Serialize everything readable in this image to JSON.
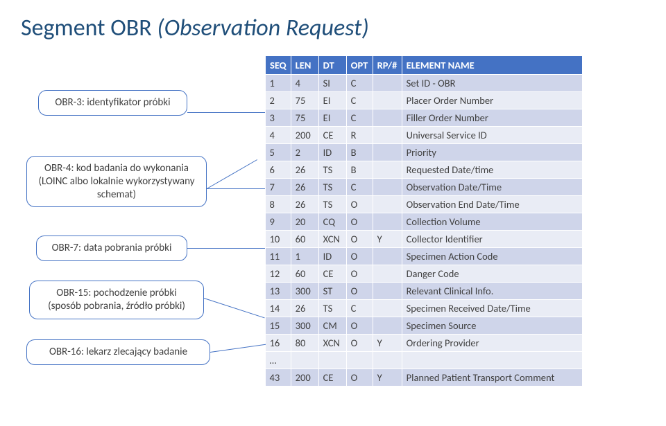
{
  "title": {
    "main": "Segment OBR ",
    "sub": "(Observation Request)"
  },
  "callouts": {
    "c1": "OBR-3: identyfikator próbki",
    "c2": "OBR-4: kod badania do wykonania (LOINC albo lokalnie wykorzystywany schemat)",
    "c3": "OBR-7: data pobrania próbki",
    "c4": "OBR-15: pochodzenie próbki (sposób pobrania, źródło próbki)",
    "c5": "OBR-16: lekarz zlecający badanie"
  },
  "table": {
    "headers": {
      "seq": "SEQ",
      "len": "LEN",
      "dt": "DT",
      "opt": "OPT",
      "rp": "RP/#",
      "name": "ELEMENT NAME"
    },
    "rows": [
      {
        "seq": "1",
        "len": "4",
        "dt": "SI",
        "opt": "C",
        "rp": "",
        "name": "Set ID - OBR"
      },
      {
        "seq": "2",
        "len": "75",
        "dt": "EI",
        "opt": "C",
        "rp": "",
        "name": "Placer Order Number"
      },
      {
        "seq": "3",
        "len": "75",
        "dt": "EI",
        "opt": "C",
        "rp": "",
        "name": "Filler Order Number"
      },
      {
        "seq": "4",
        "len": "200",
        "dt": "CE",
        "opt": "R",
        "rp": "",
        "name": "Universal Service ID"
      },
      {
        "seq": "5",
        "len": "2",
        "dt": "ID",
        "opt": "B",
        "rp": "",
        "name": "Priority"
      },
      {
        "seq": "6",
        "len": "26",
        "dt": "TS",
        "opt": "B",
        "rp": "",
        "name": "Requested Date/time"
      },
      {
        "seq": "7",
        "len": "26",
        "dt": "TS",
        "opt": "C",
        "rp": "",
        "name": "Observation Date/Time"
      },
      {
        "seq": "8",
        "len": "26",
        "dt": "TS",
        "opt": "O",
        "rp": "",
        "name": "Observation End Date/Time"
      },
      {
        "seq": "9",
        "len": "20",
        "dt": "CQ",
        "opt": "O",
        "rp": "",
        "name": "Collection Volume"
      },
      {
        "seq": "10",
        "len": "60",
        "dt": "XCN",
        "opt": "O",
        "rp": "Y",
        "name": "Collector Identifier"
      },
      {
        "seq": "11",
        "len": "1",
        "dt": "ID",
        "opt": "O",
        "rp": "",
        "name": "Specimen Action Code"
      },
      {
        "seq": "12",
        "len": "60",
        "dt": "CE",
        "opt": "O",
        "rp": "",
        "name": "Danger Code"
      },
      {
        "seq": "13",
        "len": "300",
        "dt": "ST",
        "opt": "O",
        "rp": "",
        "name": "Relevant Clinical Info."
      },
      {
        "seq": "14",
        "len": "26",
        "dt": "TS",
        "opt": "C",
        "rp": "",
        "name": "Specimen Received Date/Time"
      },
      {
        "seq": "15",
        "len": "300",
        "dt": "CM",
        "opt": "O",
        "rp": "",
        "name": "Specimen Source"
      },
      {
        "seq": "16",
        "len": "80",
        "dt": "XCN",
        "opt": "O",
        "rp": "Y",
        "name": "Ordering Provider"
      }
    ],
    "ellipsis": "…",
    "lastRow": {
      "seq": "43",
      "len": "200",
      "dt": "CE",
      "opt": "O",
      "rp": "Y",
      "name": "Planned Patient Transport Comment"
    }
  },
  "style": {
    "title_color": "#1f4e79",
    "callout_border": "#4472c4",
    "header_bg": "#4472c4",
    "header_fg": "#ffffff",
    "row_alt_a": "#cfd5ea",
    "row_alt_b": "#e9ecf5",
    "text_color": "#404040"
  }
}
